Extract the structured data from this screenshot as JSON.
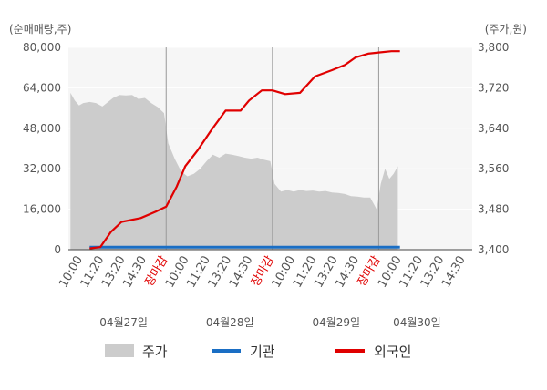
{
  "chart_data": {
    "type": "line",
    "units": {
      "left": "(순매매량,주)",
      "right": "(주가,원)"
    },
    "y_left": {
      "ticks": [
        "80,000",
        "64,000",
        "48,000",
        "32,000",
        "16,000",
        "0"
      ],
      "range": [
        0,
        80000
      ]
    },
    "y_right": {
      "ticks": [
        "3,800",
        "3,720",
        "3,640",
        "3,560",
        "3,480",
        "3,400"
      ],
      "range": [
        3400,
        3800
      ]
    },
    "x_ticks": [
      {
        "label": "10:00",
        "color": "#555555"
      },
      {
        "label": "11:20",
        "color": "#555555"
      },
      {
        "label": "13:20",
        "color": "#555555"
      },
      {
        "label": "14:30",
        "color": "#555555"
      },
      {
        "label": "장마감",
        "color": "#e00000"
      },
      {
        "label": "10:00",
        "color": "#555555"
      },
      {
        "label": "11:20",
        "color": "#555555"
      },
      {
        "label": "13:20",
        "color": "#555555"
      },
      {
        "label": "14:30",
        "color": "#555555"
      },
      {
        "label": "장마감",
        "color": "#e00000"
      },
      {
        "label": "10:00",
        "color": "#555555"
      },
      {
        "label": "11:20",
        "color": "#555555"
      },
      {
        "label": "13:20",
        "color": "#555555"
      },
      {
        "label": "14:30",
        "color": "#555555"
      },
      {
        "label": "장마감",
        "color": "#e00000"
      },
      {
        "label": "10:00",
        "color": "#555555"
      },
      {
        "label": "11:20",
        "color": "#555555"
      },
      {
        "label": "13:20",
        "color": "#555555"
      },
      {
        "label": "14:30",
        "color": "#555555"
      }
    ],
    "x_axis_slots": 19,
    "dates": [
      "04월27일",
      "04월28일",
      "04월29일",
      "04월30일"
    ],
    "day_boundaries": [
      4.6,
      9.6,
      14.6
    ],
    "series": [
      {
        "name": "주가",
        "type": "area",
        "axis": "right",
        "color": "#cccccc",
        "points": [
          [
            0.1,
            3710
          ],
          [
            0.3,
            3695
          ],
          [
            0.5,
            3685
          ],
          [
            0.7,
            3690
          ],
          [
            1.0,
            3692
          ],
          [
            1.3,
            3690
          ],
          [
            1.6,
            3683
          ],
          [
            1.8,
            3690
          ],
          [
            2.1,
            3700
          ],
          [
            2.4,
            3706
          ],
          [
            2.7,
            3705
          ],
          [
            3.0,
            3706
          ],
          [
            3.3,
            3698
          ],
          [
            3.6,
            3700
          ],
          [
            3.9,
            3690
          ],
          [
            4.2,
            3682
          ],
          [
            4.5,
            3670
          ],
          [
            4.7,
            3610
          ],
          [
            5.0,
            3580
          ],
          [
            5.3,
            3555
          ],
          [
            5.6,
            3545
          ],
          [
            5.9,
            3550
          ],
          [
            6.2,
            3560
          ],
          [
            6.5,
            3575
          ],
          [
            6.8,
            3588
          ],
          [
            7.1,
            3582
          ],
          [
            7.4,
            3590
          ],
          [
            7.7,
            3588
          ],
          [
            8.0,
            3585
          ],
          [
            8.3,
            3582
          ],
          [
            8.6,
            3580
          ],
          [
            8.9,
            3582
          ],
          [
            9.2,
            3578
          ],
          [
            9.5,
            3575
          ],
          [
            9.7,
            3530
          ],
          [
            10.0,
            3515
          ],
          [
            10.3,
            3518
          ],
          [
            10.6,
            3515
          ],
          [
            10.9,
            3518
          ],
          [
            11.2,
            3516
          ],
          [
            11.5,
            3517
          ],
          [
            11.8,
            3515
          ],
          [
            12.1,
            3516
          ],
          [
            12.4,
            3513
          ],
          [
            12.7,
            3512
          ],
          [
            13.0,
            3510
          ],
          [
            13.3,
            3506
          ],
          [
            13.6,
            3505
          ],
          [
            13.9,
            3503
          ],
          [
            14.2,
            3503
          ],
          [
            14.5,
            3480
          ],
          [
            14.7,
            3530
          ],
          [
            14.9,
            3560
          ],
          [
            15.1,
            3540
          ],
          [
            15.3,
            3550
          ],
          [
            15.5,
            3565
          ]
        ]
      },
      {
        "name": "기관",
        "type": "line",
        "axis": "left",
        "color": "#1a6ec4",
        "points": [
          [
            1.0,
            1000
          ],
          [
            15.6,
            1000
          ]
        ]
      },
      {
        "name": "외국인",
        "type": "line",
        "axis": "left",
        "color": "#e00000",
        "points": [
          [
            1.0,
            500
          ],
          [
            1.5,
            1000
          ],
          [
            2.0,
            7000
          ],
          [
            2.5,
            11000
          ],
          [
            3.4,
            12500
          ],
          [
            4.1,
            15000
          ],
          [
            4.6,
            17000
          ],
          [
            5.1,
            25000
          ],
          [
            5.5,
            33000
          ],
          [
            6.1,
            39500
          ],
          [
            6.7,
            47000
          ],
          [
            7.4,
            55000
          ],
          [
            8.1,
            55000
          ],
          [
            8.5,
            59000
          ],
          [
            9.1,
            63000
          ],
          [
            9.6,
            63000
          ],
          [
            10.2,
            61500
          ],
          [
            10.9,
            62000
          ],
          [
            11.6,
            68500
          ],
          [
            12.4,
            71000
          ],
          [
            13.0,
            73000
          ],
          [
            13.5,
            76000
          ],
          [
            14.1,
            77500
          ],
          [
            14.6,
            78000
          ],
          [
            15.2,
            78500
          ],
          [
            15.6,
            78500
          ]
        ]
      }
    ],
    "legend": [
      {
        "label": "주가",
        "type": "area",
        "color": "#cccccc"
      },
      {
        "label": "기관",
        "type": "line",
        "color": "#1a6ec4"
      },
      {
        "label": "외국인",
        "type": "line",
        "color": "#e00000"
      }
    ],
    "legend_position": "bottom"
  }
}
